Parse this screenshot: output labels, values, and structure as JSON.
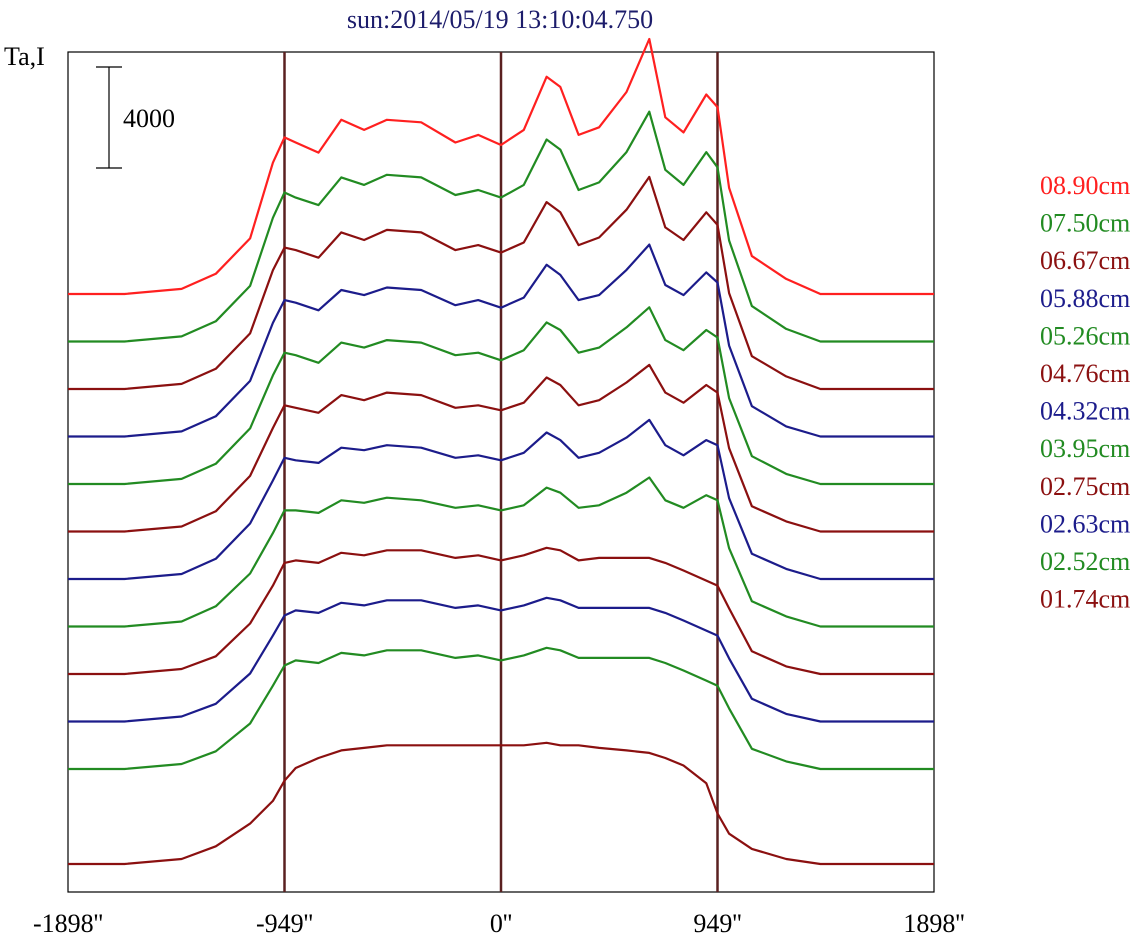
{
  "chart_data": {
    "type": "line",
    "title": "sun:2014/05/19 13:10:04.750",
    "ylabel": "Ta,I",
    "scale_bar": {
      "label": "4000",
      "value": 4000
    },
    "xlim": [
      -1898,
      1898
    ],
    "x_ticks": [
      {
        "value": -1898,
        "label": "-1898''"
      },
      {
        "value": -949,
        "label": "-949''"
      },
      {
        "value": 0,
        "label": "0''"
      },
      {
        "value": 949,
        "label": "949''"
      },
      {
        "value": 1898,
        "label": "1898''"
      }
    ],
    "vertical_lines": [
      -949,
      0,
      949
    ],
    "stacked": true,
    "x": [
      -1898,
      -1650,
      -1400,
      -1250,
      -1100,
      -1000,
      -949,
      -900,
      -800,
      -700,
      -600,
      -500,
      -350,
      -200,
      -100,
      0,
      100,
      200,
      260,
      340,
      430,
      550,
      650,
      720,
      800,
      900,
      949,
      1000,
      1100,
      1250,
      1400,
      1650,
      1898
    ],
    "legend_position": "right",
    "series": [
      {
        "name": "08.90cm",
        "color": "#ff2020",
        "offset": 12,
        "values": [
          0,
          0,
          200,
          800,
          2200,
          5200,
          6200,
          6000,
          5600,
          6900,
          6500,
          6900,
          6800,
          6000,
          6300,
          5900,
          6500,
          8600,
          8200,
          6300,
          6600,
          8000,
          10100,
          7000,
          6400,
          7900,
          7400,
          4200,
          1500,
          600,
          0,
          0,
          0
        ]
      },
      {
        "name": "07.50cm",
        "color": "#228b22",
        "offset": 11,
        "values": [
          0,
          0,
          200,
          800,
          2200,
          4900,
          5900,
          5700,
          5400,
          6500,
          6200,
          6600,
          6500,
          5800,
          6000,
          5700,
          6200,
          8000,
          7600,
          6000,
          6300,
          7500,
          9100,
          6800,
          6200,
          7500,
          6900,
          4000,
          1400,
          500,
          0,
          0,
          0
        ]
      },
      {
        "name": "06.67cm",
        "color": "#8b1010",
        "offset": 10,
        "values": [
          0,
          0,
          200,
          800,
          2200,
          4700,
          5600,
          5500,
          5200,
          6200,
          5900,
          6300,
          6200,
          5500,
          5700,
          5400,
          5800,
          7400,
          7000,
          5700,
          6000,
          7100,
          8400,
          6400,
          5900,
          7000,
          6500,
          3800,
          1300,
          500,
          0,
          0,
          0
        ]
      },
      {
        "name": "05.88cm",
        "color": "#1c1c8b",
        "offset": 9,
        "values": [
          0,
          0,
          200,
          800,
          2200,
          4500,
          5400,
          5300,
          5000,
          5800,
          5600,
          5900,
          5800,
          5200,
          5400,
          5100,
          5500,
          6800,
          6400,
          5400,
          5600,
          6600,
          7600,
          6000,
          5600,
          6500,
          6100,
          3600,
          1200,
          400,
          0,
          0,
          0
        ]
      },
      {
        "name": "05.26cm",
        "color": "#228b22",
        "offset": 8,
        "values": [
          0,
          0,
          200,
          800,
          2200,
          4300,
          5200,
          5100,
          4800,
          5600,
          5400,
          5700,
          5600,
          5100,
          5200,
          4900,
          5300,
          6400,
          6100,
          5200,
          5400,
          6200,
          7000,
          5700,
          5300,
          6100,
          5800,
          3400,
          1100,
          400,
          0,
          0,
          0
        ]
      },
      {
        "name": "04.76cm",
        "color": "#8b1010",
        "offset": 7,
        "values": [
          0,
          0,
          200,
          800,
          2200,
          4100,
          5000,
          4900,
          4700,
          5400,
          5200,
          5500,
          5400,
          4900,
          5000,
          4800,
          5100,
          6100,
          5800,
          5000,
          5200,
          5900,
          6600,
          5500,
          5100,
          5800,
          5500,
          3300,
          1000,
          400,
          0,
          0,
          0
        ]
      },
      {
        "name": "04.32cm",
        "color": "#1c1c8b",
        "offset": 6,
        "values": [
          0,
          0,
          200,
          800,
          2200,
          3900,
          4800,
          4700,
          4600,
          5200,
          5100,
          5300,
          5200,
          4800,
          4900,
          4700,
          5000,
          5800,
          5500,
          4800,
          5000,
          5600,
          6300,
          5300,
          4900,
          5500,
          5300,
          3200,
          1000,
          400,
          0,
          0,
          0
        ]
      },
      {
        "name": "03.95cm",
        "color": "#228b22",
        "offset": 5,
        "values": [
          0,
          0,
          200,
          800,
          2100,
          3700,
          4600,
          4600,
          4500,
          5000,
          4900,
          5100,
          5000,
          4700,
          4800,
          4600,
          4800,
          5500,
          5300,
          4700,
          4800,
          5300,
          5900,
          5000,
          4700,
          5200,
          5000,
          3100,
          1000,
          400,
          0,
          0,
          0
        ]
      },
      {
        "name": "02.75cm",
        "color": "#8b1010",
        "offset": 4,
        "values": [
          0,
          0,
          200,
          700,
          2000,
          3500,
          4400,
          4500,
          4400,
          4800,
          4700,
          4900,
          4900,
          4600,
          4700,
          4500,
          4700,
          5000,
          4900,
          4500,
          4600,
          4600,
          4600,
          4400,
          4100,
          3700,
          3500,
          2600,
          900,
          300,
          0,
          0,
          0
        ]
      },
      {
        "name": "02.63cm",
        "color": "#1c1c8b",
        "offset": 3,
        "values": [
          0,
          0,
          200,
          700,
          1900,
          3400,
          4200,
          4400,
          4300,
          4700,
          4600,
          4800,
          4800,
          4500,
          4600,
          4400,
          4600,
          4900,
          4800,
          4500,
          4500,
          4500,
          4500,
          4300,
          4000,
          3600,
          3400,
          2500,
          900,
          300,
          0,
          0,
          0
        ]
      },
      {
        "name": "02.52cm",
        "color": "#228b22",
        "offset": 2,
        "values": [
          0,
          0,
          200,
          700,
          1800,
          3300,
          4100,
          4300,
          4200,
          4600,
          4500,
          4700,
          4700,
          4400,
          4500,
          4300,
          4500,
          4800,
          4700,
          4400,
          4400,
          4400,
          4400,
          4200,
          3900,
          3500,
          3300,
          2400,
          800,
          300,
          0,
          0,
          0
        ]
      },
      {
        "name": "01.74cm",
        "color": "#8b1010",
        "offset": 0,
        "values": [
          0,
          0,
          200,
          700,
          1600,
          2500,
          3300,
          3800,
          4200,
          4500,
          4600,
          4700,
          4700,
          4700,
          4700,
          4700,
          4700,
          4800,
          4700,
          4700,
          4600,
          4500,
          4400,
          4200,
          3900,
          3200,
          2000,
          1200,
          600,
          200,
          0,
          0,
          0
        ]
      }
    ]
  },
  "colors": {
    "title": "#1c1c6b",
    "frame": "#000000",
    "vertical_line": "#5a2020"
  }
}
